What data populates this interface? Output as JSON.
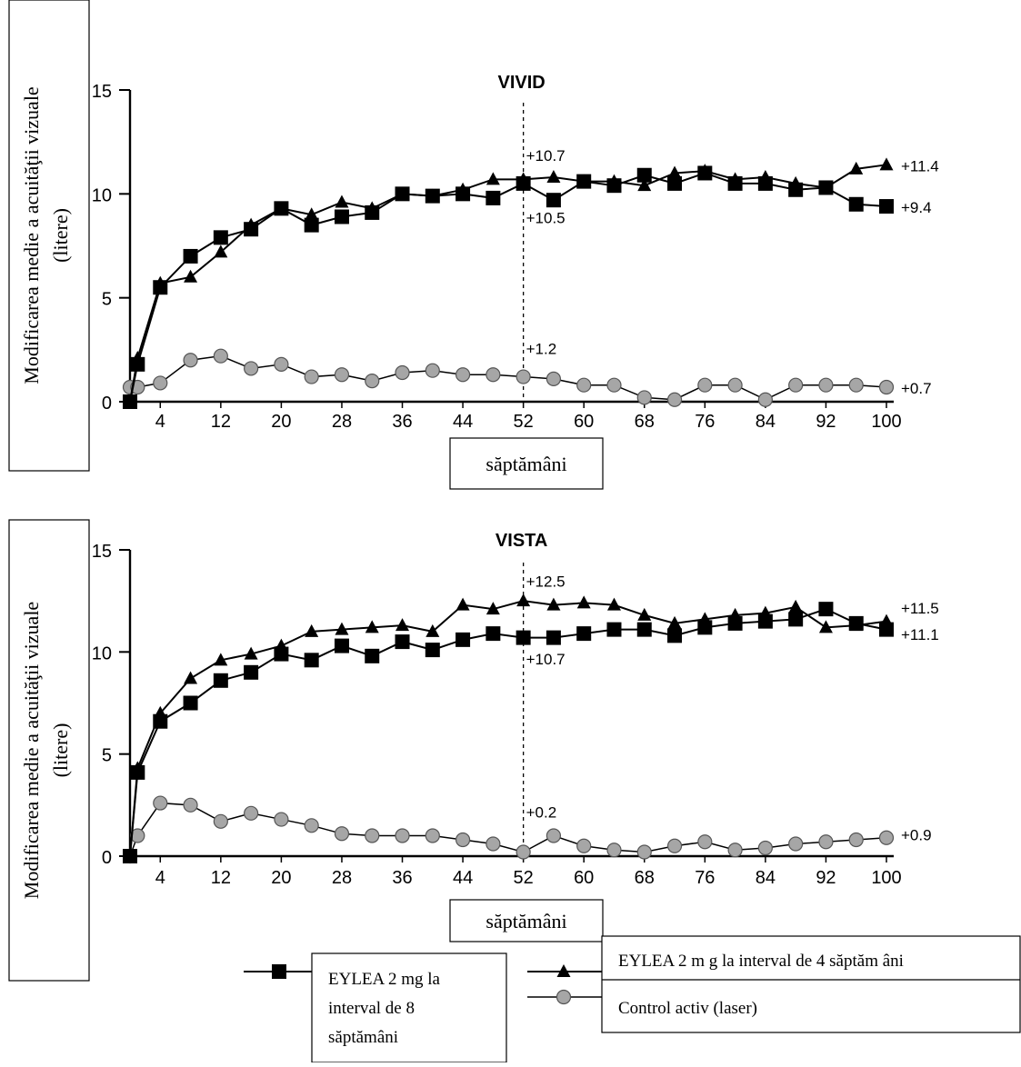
{
  "chart_data": [
    {
      "type": "line",
      "title": "VIVID",
      "xlabel": "săptămâni",
      "ylabel_line1": "Modificarea medie a acuităţii vizuale",
      "ylabel_line2": "(litere)",
      "xlim": [
        0,
        100
      ],
      "ylim": [
        0,
        15
      ],
      "xticks": [
        4,
        12,
        20,
        28,
        36,
        44,
        52,
        60,
        68,
        76,
        84,
        92,
        100
      ],
      "yticks": [
        0,
        5,
        10,
        15
      ],
      "grid": false,
      "reference_line_x": 52,
      "x": [
        0,
        1,
        4,
        8,
        12,
        16,
        20,
        24,
        28,
        32,
        36,
        40,
        44,
        48,
        52,
        56,
        60,
        64,
        68,
        72,
        76,
        80,
        84,
        88,
        92,
        96,
        100
      ],
      "series": [
        {
          "name": "EYLEA 2 mg la interval de 8 săptămâni",
          "marker": "square",
          "values": [
            0,
            1.8,
            5.5,
            7.0,
            7.9,
            8.3,
            9.3,
            8.5,
            8.9,
            9.1,
            10.0,
            9.9,
            10.0,
            9.8,
            10.5,
            9.7,
            10.6,
            10.4,
            10.9,
            10.5,
            11.0,
            10.5,
            10.5,
            10.2,
            10.3,
            9.5,
            9.4
          ]
        },
        {
          "name": "EYLEA 2 mg la interval de 4 săptămâni",
          "marker": "triangle",
          "values": [
            0,
            2.1,
            5.7,
            6.0,
            7.2,
            8.5,
            9.3,
            9.0,
            9.6,
            9.3,
            10.0,
            9.9,
            10.2,
            10.7,
            10.7,
            10.8,
            10.6,
            10.6,
            10.4,
            11.0,
            11.1,
            10.7,
            10.8,
            10.5,
            10.3,
            11.2,
            11.4
          ]
        },
        {
          "name": "Control activ (laser)",
          "marker": "circle",
          "values": [
            0.7,
            0.7,
            0.9,
            2.0,
            2.2,
            1.6,
            1.8,
            1.2,
            1.3,
            1.0,
            1.4,
            1.5,
            1.3,
            1.3,
            1.2,
            1.1,
            0.8,
            0.8,
            0.2,
            0.1,
            0.8,
            0.8,
            0.1,
            0.8,
            0.8,
            0.8,
            0.7
          ]
        }
      ],
      "annotations": [
        {
          "text": "+10.7",
          "x": 52,
          "y": 11.9,
          "anchor": "start"
        },
        {
          "text": "+10.5",
          "x": 52,
          "y": 8.9,
          "anchor": "start"
        },
        {
          "text": "+1.2",
          "x": 52,
          "y": 2.6,
          "anchor": "start"
        },
        {
          "text": "+11.4",
          "x": 102,
          "y": 11.4,
          "anchor": "start"
        },
        {
          "text": "+9.4",
          "x": 102,
          "y": 9.4,
          "anchor": "start"
        },
        {
          "text": "+0.7",
          "x": 102,
          "y": 0.7,
          "anchor": "start"
        }
      ]
    },
    {
      "type": "line",
      "title": "VISTA",
      "xlabel": "săptămâni",
      "ylabel_line1": "Modificarea medie a acuităţii vizuale",
      "ylabel_line2": "(litere)",
      "xlim": [
        0,
        100
      ],
      "ylim": [
        0,
        15
      ],
      "xticks": [
        4,
        12,
        20,
        28,
        36,
        44,
        52,
        60,
        68,
        76,
        84,
        92,
        100
      ],
      "yticks": [
        0,
        5,
        10,
        15
      ],
      "grid": false,
      "reference_line_x": 52,
      "x": [
        0,
        1,
        4,
        8,
        12,
        16,
        20,
        24,
        28,
        32,
        36,
        40,
        44,
        48,
        52,
        56,
        60,
        64,
        68,
        72,
        76,
        80,
        84,
        88,
        92,
        96,
        100
      ],
      "series": [
        {
          "name": "EYLEA 2 mg la interval de 8 săptămâni",
          "marker": "square",
          "values": [
            0,
            4.1,
            6.6,
            7.5,
            8.6,
            9.0,
            9.9,
            9.6,
            10.3,
            9.8,
            10.5,
            10.1,
            10.6,
            10.9,
            10.7,
            10.7,
            10.9,
            11.1,
            11.1,
            10.8,
            11.2,
            11.4,
            11.5,
            11.6,
            12.1,
            11.4,
            11.1
          ]
        },
        {
          "name": "EYLEA 2 mg la interval de 4 săptămâni",
          "marker": "triangle",
          "values": [
            0,
            4.3,
            7.0,
            8.7,
            9.6,
            9.9,
            10.3,
            11.0,
            11.1,
            11.2,
            11.3,
            11.0,
            12.3,
            12.1,
            12.5,
            12.3,
            12.4,
            12.3,
            11.8,
            11.4,
            11.6,
            11.8,
            11.9,
            12.2,
            11.2,
            11.3,
            11.5
          ]
        },
        {
          "name": "Control activ (laser)",
          "marker": "circle",
          "values": [
            0,
            1.0,
            2.6,
            2.5,
            1.7,
            2.1,
            1.8,
            1.5,
            1.1,
            1.0,
            1.0,
            1.0,
            0.8,
            0.6,
            0.2,
            1.0,
            0.5,
            0.3,
            0.2,
            0.5,
            0.7,
            0.3,
            0.4,
            0.6,
            0.7,
            0.8,
            0.9
          ]
        }
      ],
      "annotations": [
        {
          "text": "+12.5",
          "x": 52,
          "y": 13.5,
          "anchor": "start"
        },
        {
          "text": "+10.7",
          "x": 52,
          "y": 9.7,
          "anchor": "start"
        },
        {
          "text": "+0.2",
          "x": 52,
          "y": 2.2,
          "anchor": "start"
        },
        {
          "text": "+11.5",
          "x": 102,
          "y": 12.2,
          "anchor": "start"
        },
        {
          "text": "+11.1",
          "x": 102,
          "y": 10.9,
          "anchor": "start"
        },
        {
          "text": "+0.9",
          "x": 102,
          "y": 1.1,
          "anchor": "start"
        }
      ]
    }
  ],
  "legend": {
    "items": [
      {
        "marker": "square",
        "label_lines": [
          "EYLEA 2 mg la",
          "interval de 8",
          "săptămâni"
        ]
      },
      {
        "marker": "triangle",
        "label_lines": [
          "EYLEA 2 m g la interval de 4 săptăm âni"
        ]
      },
      {
        "marker": "circle",
        "label_lines": [
          "Control activ (laser)"
        ]
      }
    ]
  }
}
